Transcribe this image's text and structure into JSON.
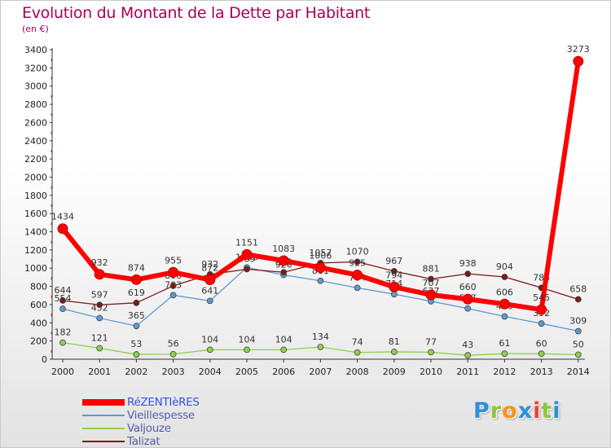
{
  "title": "Evolution du Montant de la Dette par Habitant",
  "subtitle": "(en €)",
  "chart_data": {
    "type": "line",
    "title": "Evolution du Montant de la Dette par Habitant",
    "subtitle": "(en €)",
    "x": [
      2000,
      2001,
      2002,
      2003,
      2004,
      2005,
      2006,
      2007,
      2008,
      2009,
      2010,
      2011,
      2012,
      2013,
      2014
    ],
    "ylim": [
      0,
      3400
    ],
    "yticks": [
      0,
      200,
      400,
      600,
      800,
      1000,
      1200,
      1400,
      1600,
      1800,
      2000,
      2200,
      2400,
      2600,
      2800,
      3000,
      3200,
      3400
    ],
    "grid": false,
    "legend": "bottom-left",
    "series": [
      {
        "name": "RéZENTIèRES",
        "color": "#ff0000",
        "values": [
          1434,
          932,
          874,
          955,
          872,
          1151,
          1083,
          1006,
          925,
          794,
          707,
          660,
          606,
          545,
          3273
        ],
        "labels": [
          "1434",
          "932",
          "874",
          "955",
          "872",
          "1151",
          "1083",
          "1006",
          "925",
          "794",
          "707",
          "660",
          "606",
          "545",
          "3273"
        ]
      },
      {
        "name": "Vieillespesse",
        "color": "#5b9bd5",
        "values": [
          554,
          452,
          365,
          703,
          641,
          1008,
          926,
          861,
          784,
          714,
          637,
          557,
          470,
          392,
          309
        ],
        "labels": [
          "554",
          "452",
          "365",
          "703",
          "641",
          "1008",
          "926",
          "861",
          "784",
          "714",
          "637",
          "557",
          "470",
          "392",
          "309"
        ]
      },
      {
        "name": "Valjouze",
        "color": "#8ed14a",
        "values": [
          182,
          121,
          53,
          56,
          104,
          104,
          104,
          134,
          74,
          81,
          77,
          43,
          61,
          60,
          50
        ],
        "labels": [
          "182",
          "121",
          "53",
          "56",
          "104",
          "104",
          "104",
          "134",
          "74",
          "81",
          "77",
          "43",
          "61",
          "60",
          "50"
        ]
      },
      {
        "name": "Talizat",
        "color": "#7a1a1a",
        "values": [
          644,
          597,
          619,
          806,
          932,
          989,
          955,
          1057,
          1070,
          967,
          881,
          938,
          904,
          785,
          658
        ],
        "labels": [
          "644",
          "597",
          "619",
          "806",
          "932",
          "989",
          "955",
          "1057",
          "1070",
          "967",
          "881",
          "938",
          "904",
          "785",
          "658"
        ]
      }
    ]
  },
  "logo": {
    "letters": [
      "P",
      "r",
      "o",
      "x",
      "i",
      "t",
      "i"
    ],
    "colors": [
      "#2f8fd8",
      "#8cc63f",
      "#f7941d",
      "#2f8fd8",
      "#ef4136",
      "#8cc63f",
      "#2f8fd8"
    ]
  }
}
